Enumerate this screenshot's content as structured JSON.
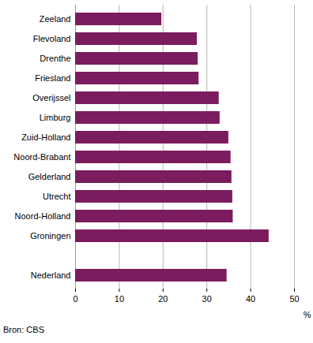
{
  "chart_data": {
    "type": "bar",
    "orientation": "horizontal",
    "caption": "Bron: CBS",
    "x_label": "%",
    "categories": [
      "Zeeland",
      "Flevoland",
      "Drenthe",
      "Friesland",
      "Overijssel",
      "Limburg",
      "Zuid-Holland",
      "Noord-Brabant",
      "Gelderland",
      "Utrecht",
      "Noord-Holland",
      "Groningen",
      null,
      "Nederland"
    ],
    "values": [
      19.7,
      27.8,
      28.0,
      28.2,
      32.8,
      33.0,
      35.0,
      35.5,
      35.7,
      35.9,
      36.0,
      44.2,
      null,
      34.6
    ],
    "color": "#7b1c5e",
    "xlim": [
      0,
      50
    ],
    "xticks": [
      0,
      10,
      20,
      30,
      40,
      50
    ],
    "grid": true
  }
}
